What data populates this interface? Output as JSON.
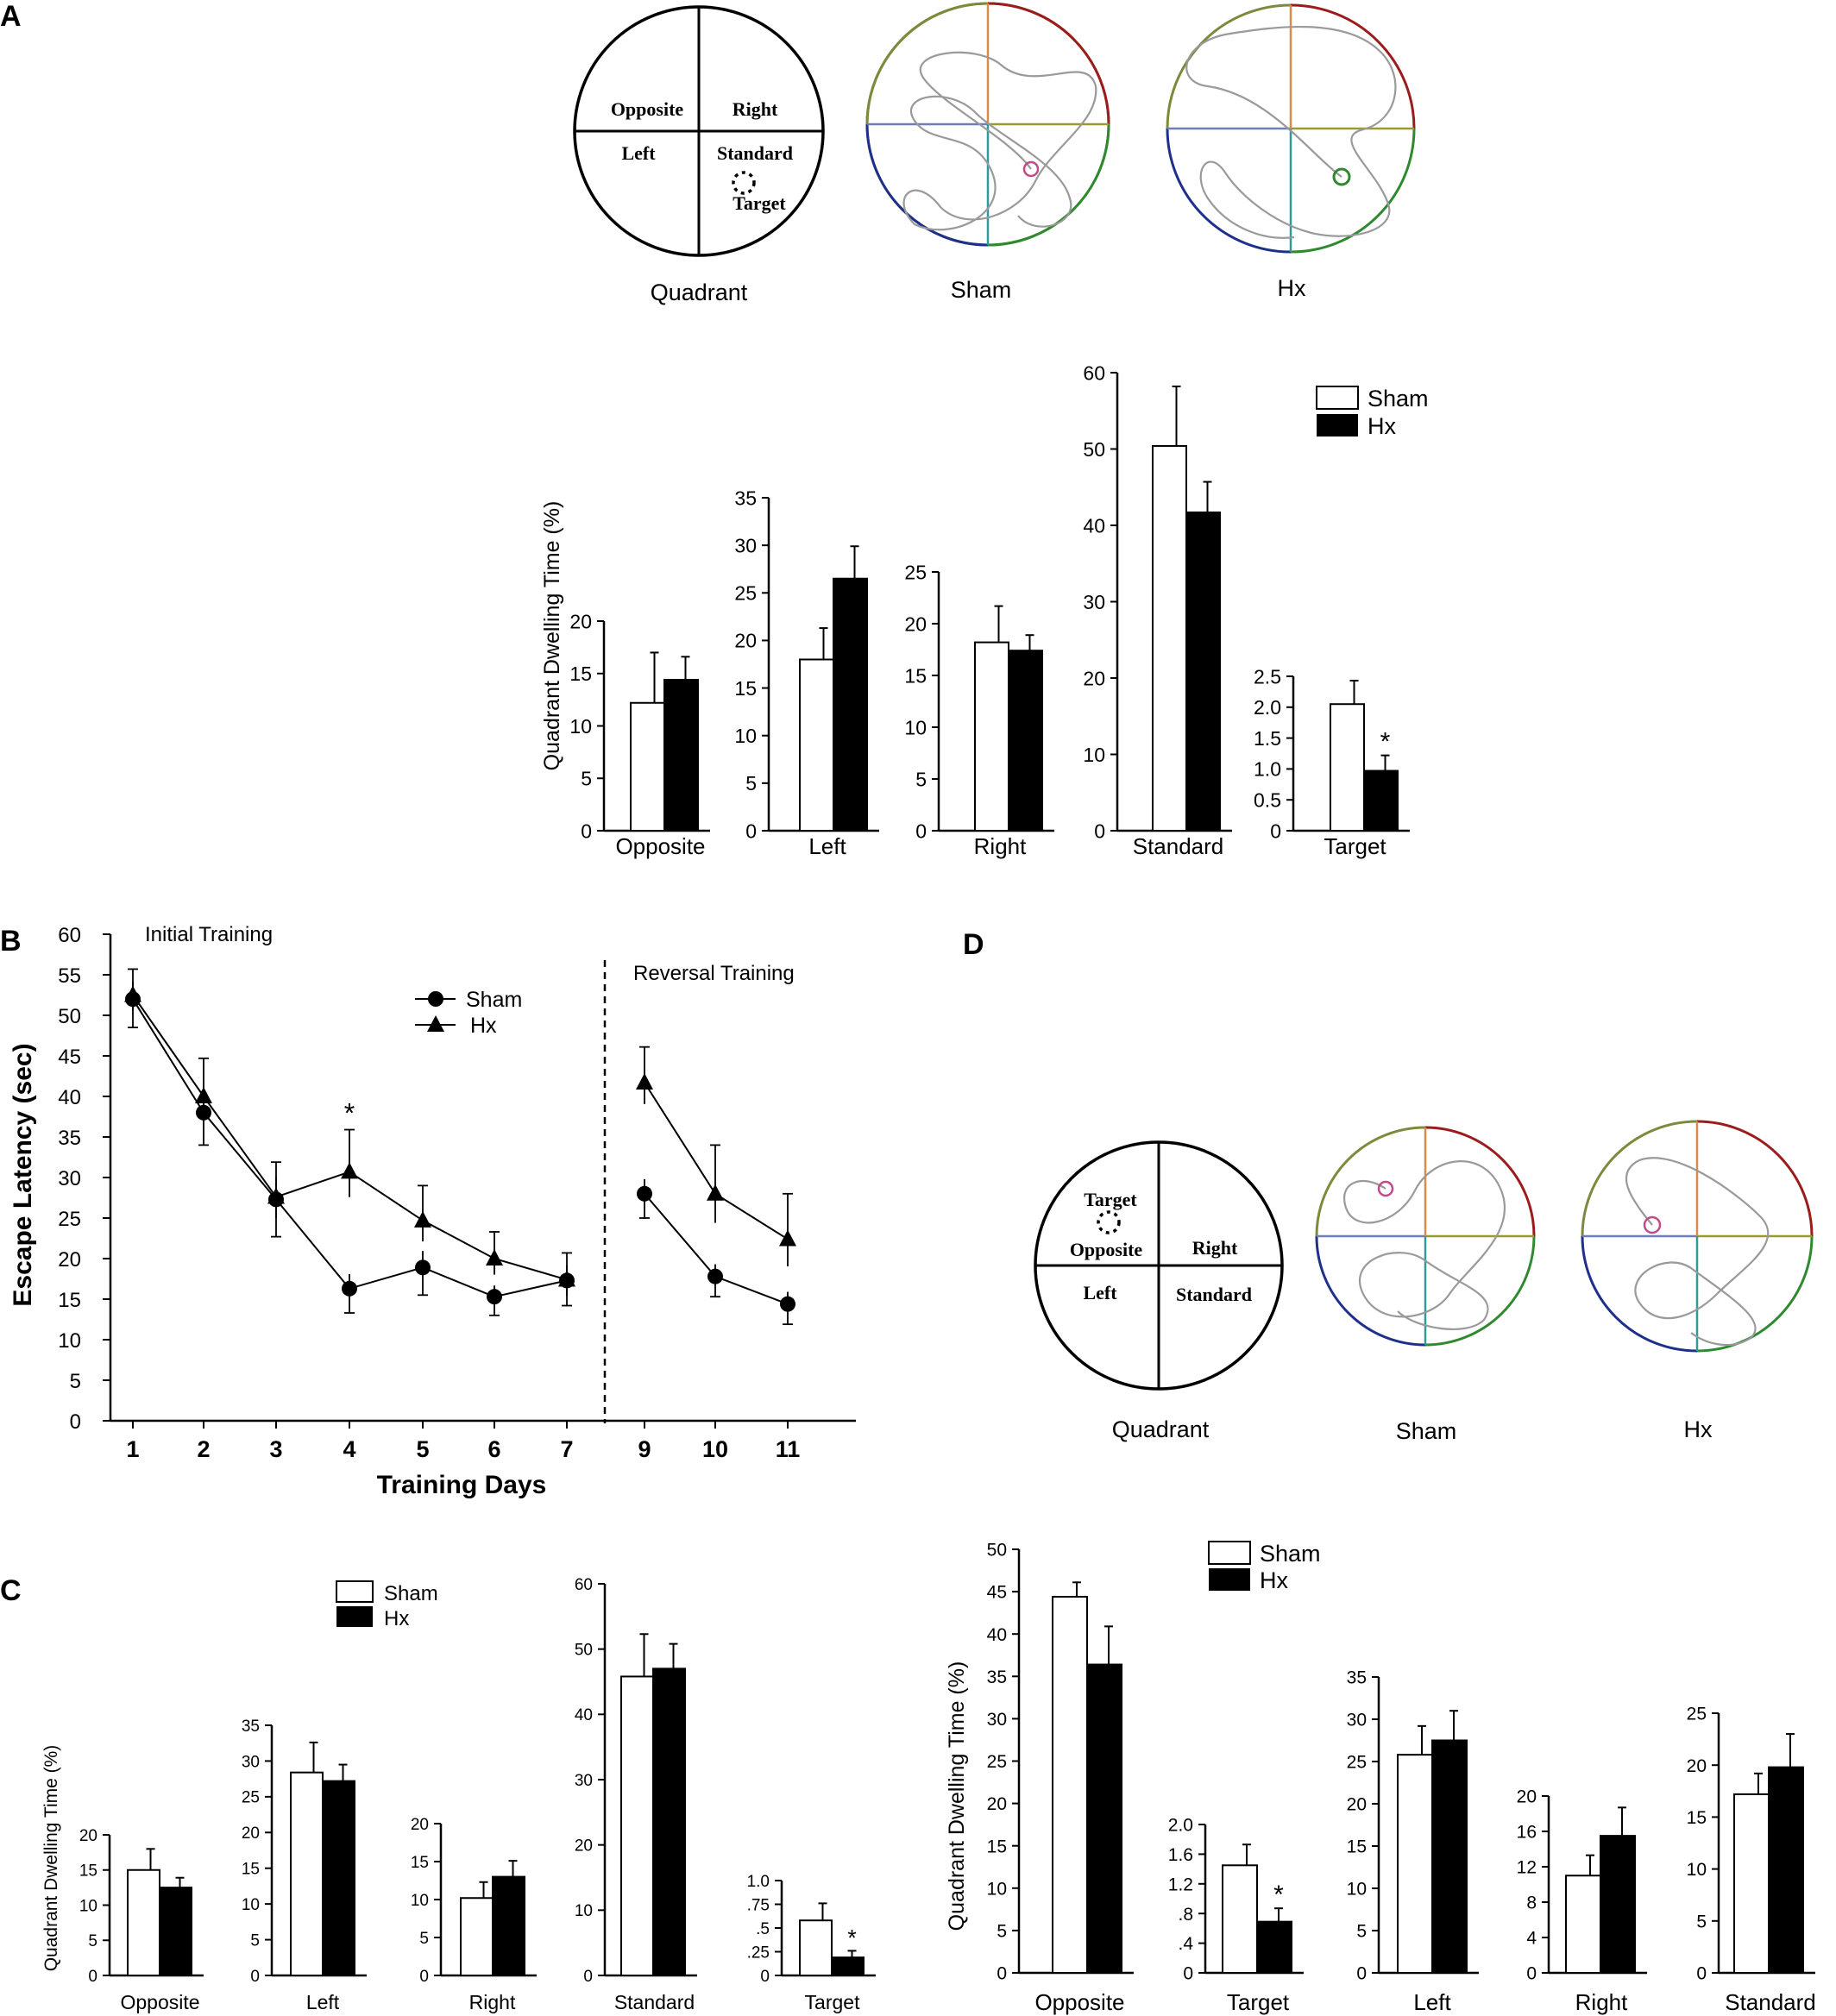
{
  "panel_labels": {
    "a": "A",
    "b": "B",
    "c": "C",
    "d": "D"
  },
  "diagram_a": {
    "quadrants": [
      "Opposite",
      "Right",
      "Left",
      "Standard"
    ],
    "target": "Target",
    "caption": "Quadrant",
    "trace_captions": [
      "Sham",
      "Hx"
    ]
  },
  "diagram_d": {
    "quadrants": [
      "Opposite",
      "Right",
      "Left",
      "Standard"
    ],
    "target": "Target",
    "caption": "Quadrant",
    "trace_captions": [
      "Sham",
      "Hx"
    ]
  },
  "colors": {
    "sham": "#ffffff",
    "hx": "#000000",
    "trace": "#9a9a9a",
    "q_top_left": "#7c8a3c",
    "q_top_right": "#9b1c1c",
    "q_bottom_left": "#1f2f8c",
    "q_bottom_right": "#2f8a2f",
    "axis_h_left": "#6f7fb5",
    "axis_h_right": "#9a9a30",
    "axis_v_top": "#d98c4a",
    "axis_v_bottom": "#2f9a9a",
    "platform": "#c04a8a"
  },
  "legend": {
    "sham": "Sham",
    "hx": "Hx"
  },
  "chart_data": [
    {
      "id": "A-bars",
      "type": "bar",
      "ylabel": "Quadrant Dwelling Time (%)",
      "series_names": [
        "Sham",
        "Hx"
      ],
      "subplots": [
        {
          "category": "Opposite",
          "ylim": [
            0,
            20
          ],
          "ticks": [
            "0",
            "5",
            "10",
            "15",
            "20"
          ],
          "values": [
            12.2,
            14.4
          ],
          "errors": [
            4.8,
            2.2
          ],
          "sig": ""
        },
        {
          "category": "Left",
          "ylim": [
            0,
            35
          ],
          "ticks": [
            "0",
            "5",
            "10",
            "15",
            "20",
            "25",
            "30",
            "35"
          ],
          "values": [
            18.0,
            26.5
          ],
          "errors": [
            3.3,
            3.4
          ],
          "sig": ""
        },
        {
          "category": "Right",
          "ylim": [
            0,
            25
          ],
          "ticks": [
            "0",
            "5",
            "10",
            "15",
            "20",
            "25"
          ],
          "values": [
            18.2,
            17.4
          ],
          "errors": [
            3.5,
            1.5
          ],
          "sig": ""
        },
        {
          "category": "Standard",
          "ylim": [
            0,
            60
          ],
          "ticks": [
            "0",
            "10",
            "20",
            "30",
            "40",
            "50",
            "60"
          ],
          "values": [
            50.4,
            41.7
          ],
          "errors": [
            7.8,
            4.0
          ],
          "sig": ""
        },
        {
          "category": "Target",
          "ylim": [
            0,
            2.5
          ],
          "ticks": [
            "0",
            "0.5",
            "1.0",
            "1.5",
            "2.0",
            "2.5"
          ],
          "values": [
            2.05,
            0.97
          ],
          "errors": [
            0.38,
            0.25
          ],
          "sig": "*"
        }
      ]
    },
    {
      "id": "B-line",
      "type": "line",
      "xlabel": "Training Days",
      "ylabel": "Escape Latency (sec)",
      "ylim": [
        0,
        60
      ],
      "yticks": [
        "0",
        "5",
        "10",
        "15",
        "20",
        "25",
        "30",
        "35",
        "40",
        "45",
        "50",
        "55",
        "60"
      ],
      "x": [
        "1",
        "2",
        "3",
        "4",
        "5",
        "6",
        "7",
        "9",
        "10",
        "11"
      ],
      "annotations": {
        "initial": "Initial Training",
        "reversal": "Reversal Training",
        "sig": "*"
      },
      "series": [
        {
          "name": "Sham",
          "segments": [
            [
              52.0,
              38.0,
              27.3,
              16.3,
              18.9,
              15.3,
              17.3
            ],
            [
              28.0,
              17.8,
              14.4
            ]
          ],
          "errors": [
            [
              3.5,
              4.0,
              4.6,
              3.0,
              3.4,
              2.3,
              3.1
            ],
            [
              3.0,
              2.5,
              2.5
            ]
          ]
        },
        {
          "name": "Hx",
          "segments": [
            [
              52.5,
              40.0,
              27.6,
              30.7,
              24.7,
              20.0,
              17.4
            ],
            [
              41.7,
              28.0,
              22.4
            ]
          ],
          "errors": [
            [
              3.2,
              4.7,
              4.3,
              5.2,
              4.3,
              3.3,
              3.3
            ],
            [
              4.4,
              6.0,
              5.6
            ]
          ]
        }
      ]
    },
    {
      "id": "C-bars",
      "type": "bar",
      "ylabel": "Quadrant Dwelling Time (%)",
      "series_names": [
        "Sham",
        "Hx"
      ],
      "subplots": [
        {
          "category": "Opposite",
          "ylim": [
            0,
            20
          ],
          "ticks": [
            "0",
            "5",
            "10",
            "15",
            "20"
          ],
          "values": [
            15.0,
            12.5
          ],
          "errors": [
            3.0,
            1.4
          ],
          "sig": ""
        },
        {
          "category": "Left",
          "ylim": [
            0,
            35
          ],
          "ticks": [
            "0",
            "5",
            "10",
            "15",
            "20",
            "25",
            "30",
            "35"
          ],
          "values": [
            28.4,
            27.2
          ],
          "errors": [
            4.2,
            2.3
          ],
          "sig": ""
        },
        {
          "category": "Right",
          "ylim": [
            0,
            20
          ],
          "ticks": [
            "0",
            "5",
            "10",
            "15",
            "20"
          ],
          "values": [
            10.2,
            13.0
          ],
          "errors": [
            2.1,
            2.1
          ],
          "sig": ""
        },
        {
          "category": "Standard",
          "ylim": [
            0,
            60
          ],
          "ticks": [
            "0",
            "10",
            "20",
            "30",
            "40",
            "50",
            "60"
          ],
          "values": [
            45.8,
            47.0
          ],
          "errors": [
            6.5,
            3.8
          ],
          "sig": ""
        },
        {
          "category": "Target",
          "ylim": [
            0,
            1.0
          ],
          "ticks": [
            "0",
            ".25",
            ".5",
            ".75",
            "1.0"
          ],
          "values": [
            0.58,
            0.19
          ],
          "errors": [
            0.18,
            0.07
          ],
          "sig": "*"
        }
      ]
    },
    {
      "id": "D-bars",
      "type": "bar",
      "ylabel": "Quadrant Dwelling Time (%)",
      "series_names": [
        "Sham",
        "Hx"
      ],
      "subplots": [
        {
          "category": "Opposite",
          "ylim": [
            0,
            50
          ],
          "ticks": [
            "0",
            "5",
            "10",
            "15",
            "20",
            "25",
            "30",
            "35",
            "40",
            "45",
            "50"
          ],
          "values": [
            44.4,
            36.4
          ],
          "errors": [
            1.7,
            4.5
          ],
          "sig": ""
        },
        {
          "category": "Target",
          "ylim": [
            0,
            2.0
          ],
          "ticks": [
            "0",
            ".4",
            ".8",
            "1.2",
            "1.6",
            "2.0"
          ],
          "values": [
            1.45,
            0.69
          ],
          "errors": [
            0.28,
            0.18
          ],
          "sig": "*"
        },
        {
          "category": "Left",
          "ylim": [
            0,
            35
          ],
          "ticks": [
            "0",
            "5",
            "10",
            "15",
            "20",
            "25",
            "30",
            "35"
          ],
          "values": [
            25.8,
            27.5
          ],
          "errors": [
            3.4,
            3.5
          ],
          "sig": ""
        },
        {
          "category": "Right",
          "ylim": [
            0,
            20
          ],
          "ticks": [
            "0",
            "4",
            "8",
            "12",
            "16",
            "20"
          ],
          "values": [
            11.0,
            15.5
          ],
          "errors": [
            2.3,
            3.2
          ],
          "sig": ""
        },
        {
          "category": "Standard",
          "ylim": [
            0,
            25
          ],
          "ticks": [
            "0",
            "5",
            "10",
            "15",
            "20",
            "25"
          ],
          "values": [
            17.2,
            19.8
          ],
          "errors": [
            2.0,
            3.2
          ],
          "sig": ""
        }
      ]
    }
  ]
}
